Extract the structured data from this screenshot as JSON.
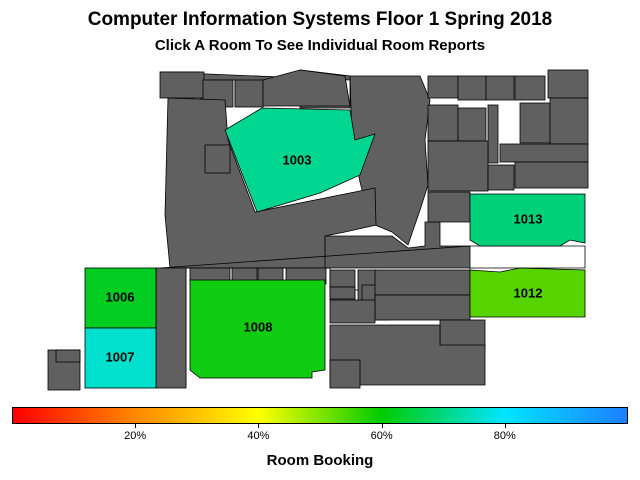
{
  "title": "Computer Information Systems Floor 1 Spring 2018",
  "subtitle": "Click A Room To See Individual Room Reports",
  "legend": {
    "title": "Room Booking",
    "ticks": [
      "20%",
      "40%",
      "60%",
      "80%"
    ],
    "tick_values": [
      0.2,
      0.4,
      0.6,
      0.8
    ],
    "gradient_colors": [
      "#ff0000",
      "#ff8800",
      "#ffff00",
      "#00cc00",
      "#00e5ff",
      "#1e7fff"
    ]
  },
  "colors": {
    "building": "#606060",
    "outline": "#000000"
  },
  "rooms": [
    {
      "id": "1003",
      "label": "1003",
      "color": "#00d690"
    },
    {
      "id": "1006",
      "label": "1006",
      "color": "#00cc22"
    },
    {
      "id": "1007",
      "label": "1007",
      "color": "#00e0cc"
    },
    {
      "id": "1008",
      "label": "1008",
      "color": "#11cc11"
    },
    {
      "id": "1012",
      "label": "1012",
      "color": "#55d400"
    },
    {
      "id": "1013",
      "label": "1013",
      "color": "#00d07a"
    }
  ]
}
